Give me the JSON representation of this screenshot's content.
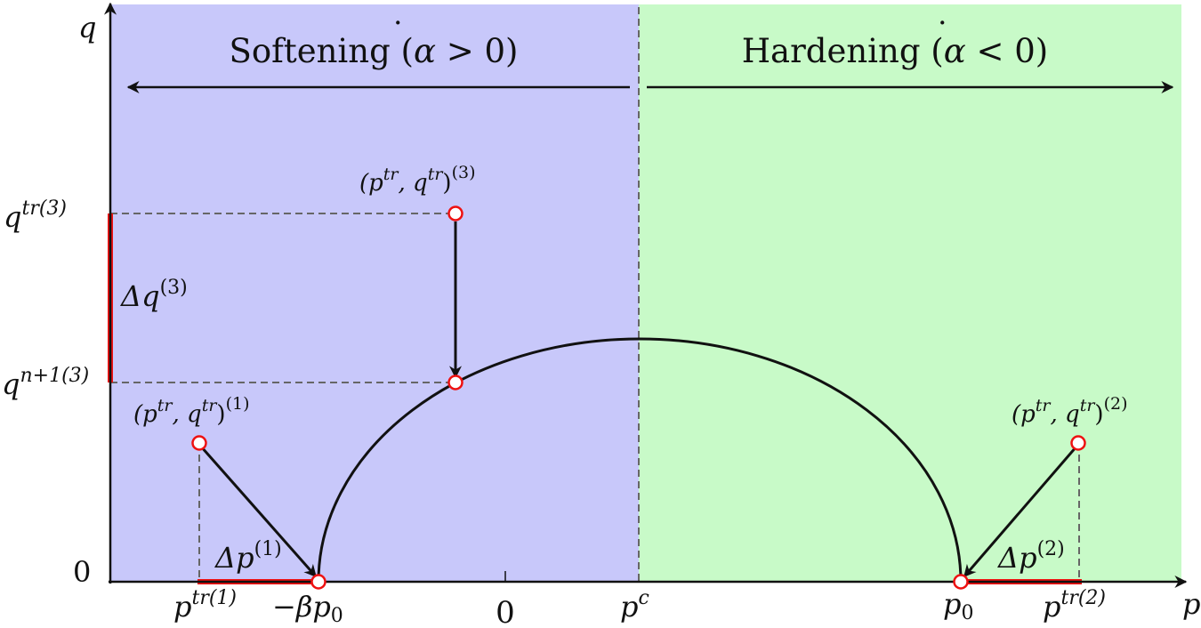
{
  "colors": {
    "softening_fill": "#c8c8fa",
    "hardening_fill": "#c8fac8",
    "axis": "#111111",
    "curve": "#111111",
    "increment": "#ee1111",
    "marker_stroke": "#ee1111",
    "marker_fill": "#ffffff",
    "dashed": "#666666"
  },
  "regions": {
    "softening": {
      "word": "Softening",
      "math_open": "(",
      "alpha": "α",
      "rel": " > 0)"
    },
    "hardening": {
      "word": "Hardening",
      "math_open": "(",
      "alpha": "α",
      "rel": " < 0)"
    }
  },
  "axes": {
    "x_label": "p",
    "y_label": "q",
    "y_origin_label": "0",
    "x_ticks": {
      "ptr1": {
        "base": "p",
        "sup": "tr(1)"
      },
      "neg_beta_p0": {
        "base": "−βp",
        "sub": "0"
      },
      "zero": "0",
      "pc": {
        "base": "p",
        "sup": "c"
      },
      "p0": {
        "base": "p",
        "sub": "0"
      },
      "ptr2": {
        "base": "p",
        "sup": "tr(2)"
      }
    },
    "y_ticks": {
      "qtr3": {
        "base": "q",
        "sup": "tr(3)"
      },
      "qn1": {
        "base": "q",
        "sup": "n+1(3)"
      }
    }
  },
  "points": {
    "trial1": {
      "open": "(p",
      "sup1": "tr",
      "mid": ", q",
      "sup2": "tr",
      "close": ")",
      "outer_sup": "(1)"
    },
    "trial2": {
      "open": "(p",
      "sup1": "tr",
      "mid": ", q",
      "sup2": "tr",
      "close": ")",
      "outer_sup": "(2)"
    },
    "trial3": {
      "open": "(p",
      "sup1": "tr",
      "mid": ", q",
      "sup2": "tr",
      "close": ")",
      "outer_sup": "(3)"
    }
  },
  "increments": {
    "dp1": {
      "base": "Δp",
      "sup": "(1)"
    },
    "dp2": {
      "base": "Δp",
      "sup": "(2)"
    },
    "dq3": {
      "base": "Δq",
      "sup": "(3)"
    }
  }
}
